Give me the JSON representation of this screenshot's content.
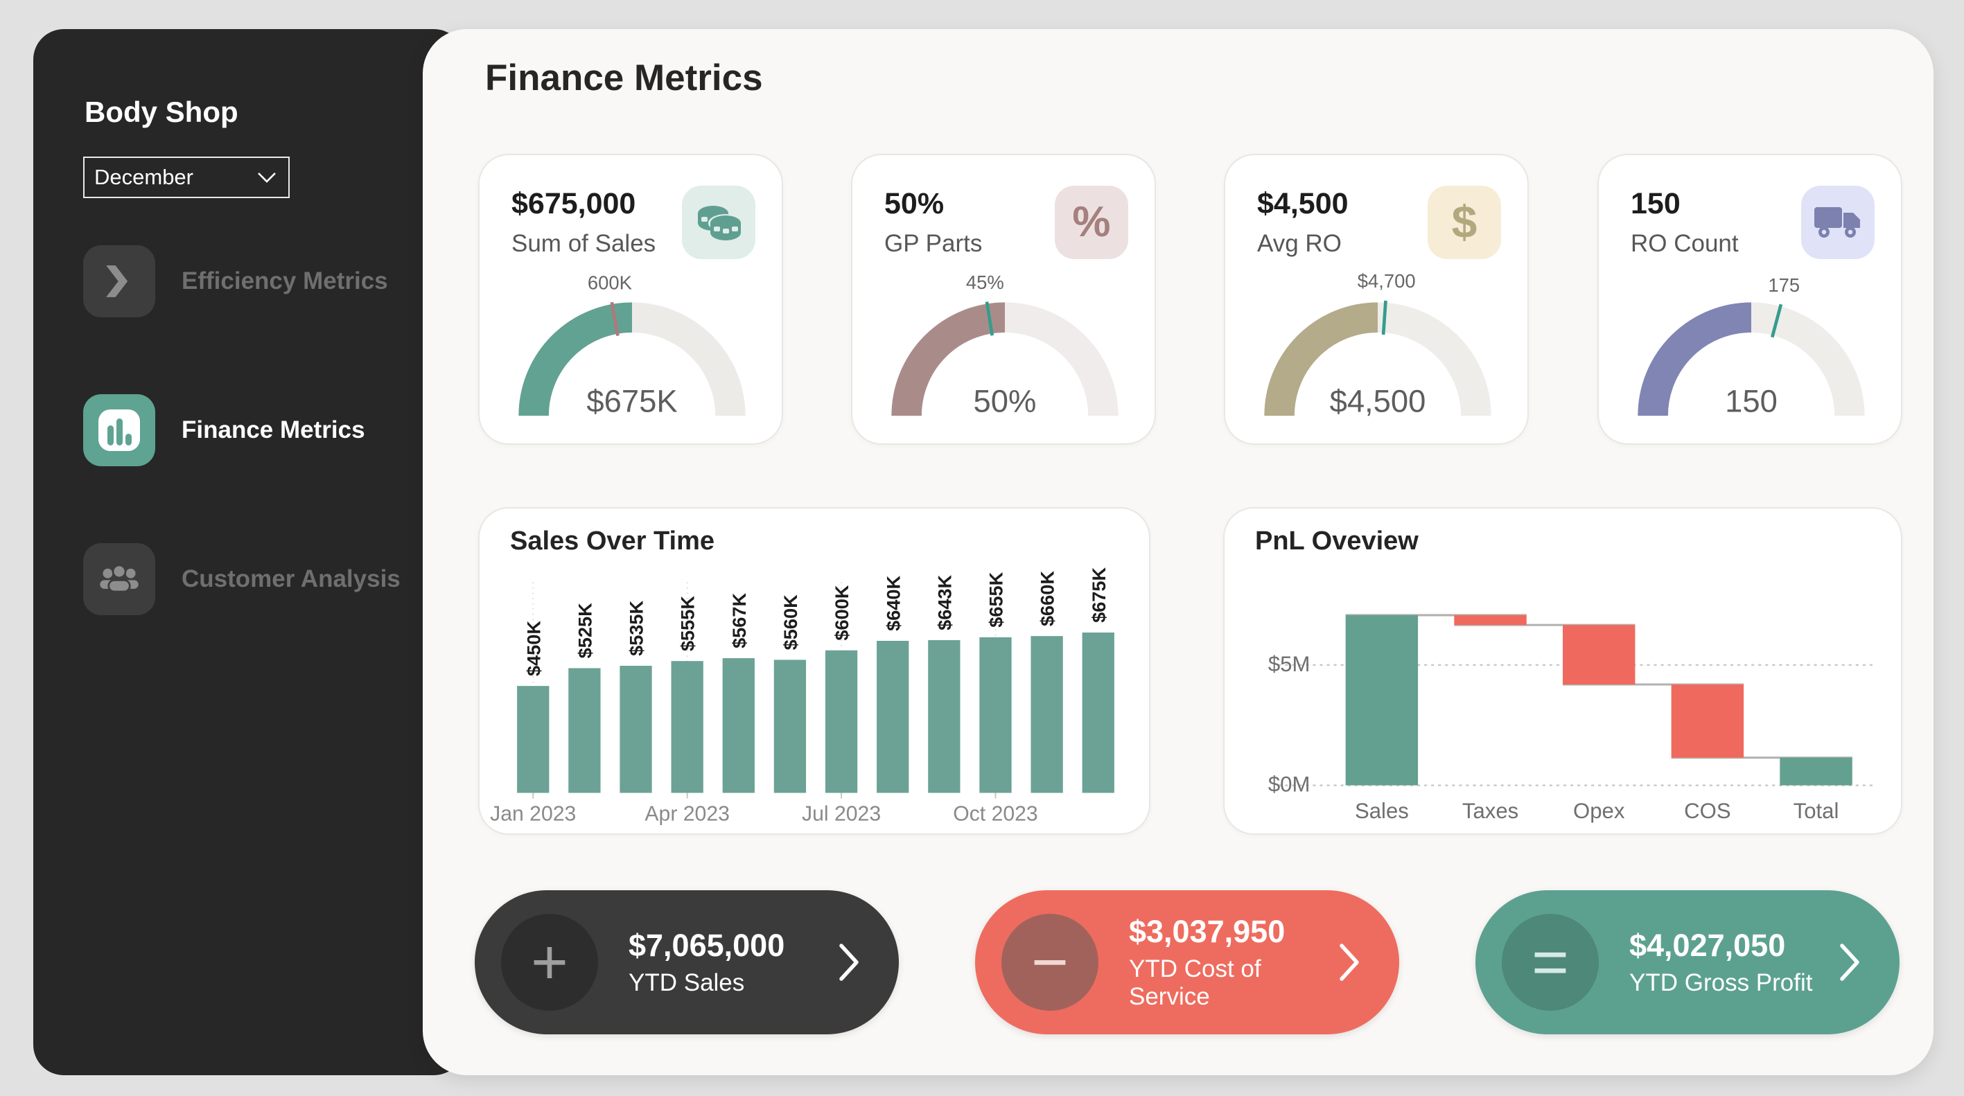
{
  "colors": {
    "accent_teal": "#5fa392",
    "negative_red": "#f0695e",
    "sidebar_bg": "#272727",
    "page_bg": "#e1e1e1"
  },
  "sidebar": {
    "title": "Body Shop",
    "month_filter": {
      "value": "December"
    },
    "nav": [
      {
        "label": "Efficiency Metrics",
        "icon": "chevron-arrow",
        "active": false
      },
      {
        "label": "Finance Metrics",
        "icon": "bar-chart",
        "active": true
      },
      {
        "label": "Customer Analysis",
        "icon": "people",
        "active": false
      }
    ]
  },
  "header": {
    "title": "Finance Metrics"
  },
  "kpi_cards": [
    {
      "value": "$675,000",
      "label": "Sum of Sales",
      "icon": "coins-icon",
      "icon_color": "#5f9f91",
      "icon_bg": "#e0ede8"
    },
    {
      "value": "50%",
      "label": "GP Parts",
      "icon": "percent-icon",
      "icon_color": "#a4807f",
      "icon_bg": "#ece1e0"
    },
    {
      "value": "$4,500",
      "label": "Avg RO",
      "icon": "dollar-icon",
      "icon_color": "#b2a87e",
      "icon_bg": "#f7ecd6"
    },
    {
      "value": "150",
      "label": "RO Count",
      "icon": "truck-icon",
      "icon_color": "#7c81af",
      "icon_bg": "#e0e3f7"
    }
  ],
  "chart_data": [
    {
      "type": "gauge",
      "title": "Sum of Sales",
      "value_label": "$675K",
      "target_label": "600K",
      "fill_fraction": 0.5,
      "target_fraction": 0.444,
      "fill_color": "#62a292",
      "target_color": "#b0787d",
      "track_color": "#edebe8"
    },
    {
      "type": "gauge",
      "title": "GP Parts",
      "value_label": "50%",
      "target_label": "45%",
      "fill_fraction": 0.5,
      "target_fraction": 0.45,
      "fill_color": "#a98c8a",
      "target_color": "#359d8c",
      "track_color": "#efeceb"
    },
    {
      "type": "gauge",
      "title": "Avg RO",
      "value_label": "$4,500",
      "target_label": "$4,700",
      "fill_fraction": 0.5,
      "target_fraction": 0.522,
      "fill_color": "#b3ab8a",
      "target_color": "#359d8c",
      "track_color": "#efedea"
    },
    {
      "type": "gauge",
      "title": "RO Count",
      "value_label": "150",
      "target_label": "175",
      "fill_fraction": 0.5,
      "target_fraction": 0.583,
      "fill_color": "#8185b4",
      "target_color": "#359d8c",
      "track_color": "#efedea"
    },
    {
      "type": "bar",
      "title": "Sales Over Time",
      "values": [
        450,
        525,
        535,
        555,
        567,
        560,
        600,
        640,
        643,
        655,
        660,
        675
      ],
      "bar_labels": [
        "$450K",
        "$525K",
        "$535K",
        "$555K",
        "$567K",
        "$560K",
        "$600K",
        "$640K",
        "$643K",
        "$655K",
        "$660K",
        "$675K"
      ],
      "x_tick_labels": [
        "Jan 2023",
        "Apr 2023",
        "Jul 2023",
        "Oct 2023"
      ],
      "x_tick_slots": [
        0,
        3,
        6,
        9
      ],
      "ylim": [
        0,
        675
      ],
      "bar_color": "#6ba295",
      "grid": "dotted-vertical-quarters"
    },
    {
      "type": "waterfall",
      "title": "PnL Oveview",
      "categories": [
        "Sales",
        "Taxes",
        "Opex",
        "COS",
        "Total"
      ],
      "values": [
        7.07,
        -0.41,
        -2.47,
        -3.04,
        1.15
      ],
      "measure": [
        "relative",
        "relative",
        "relative",
        "relative",
        "total"
      ],
      "unit": "$M",
      "y_ticks": [
        "$0M",
        "$5M"
      ],
      "y_tick_values": [
        0,
        5
      ],
      "ylim": [
        0,
        7.5
      ],
      "increase_color": "#63a08f",
      "decrease_color": "#f0695e",
      "connector_color": "#b3b1ae",
      "legend": "none",
      "grid": "dotted-horizontal"
    }
  ],
  "ytd_cards": [
    {
      "value": "$7,065,000",
      "label": "YTD Sales",
      "symbol": "plus",
      "symbol_glyph": "+",
      "bg": "#3b3b3b",
      "circle": "#2d2d2d",
      "symbol_color": "#9f9f9f"
    },
    {
      "value": "$3,037,950",
      "label": "YTD Cost of Service",
      "symbol": "minus",
      "symbol_glyph": "−",
      "bg": "#ee6c5f",
      "circle": "#a2625c",
      "symbol_color": "#f2d8d4"
    },
    {
      "value": "$4,027,050",
      "label": "YTD Gross Profit",
      "symbol": "equals",
      "symbol_glyph": "=",
      "bg": "#5ca18f",
      "circle": "#4d8879",
      "symbol_color": "#d6eae3"
    }
  ]
}
